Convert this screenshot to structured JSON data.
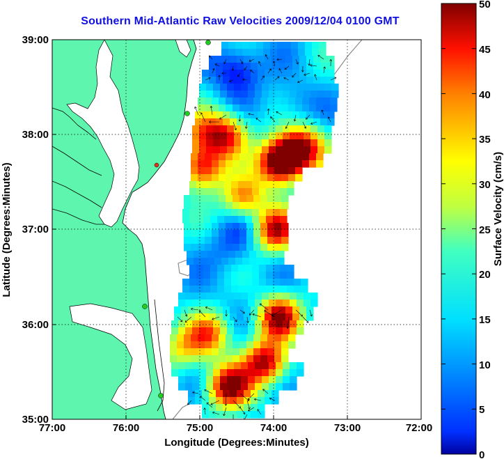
{
  "title": "Southern Mid-Atlantic Raw Velocities 2009/12/04 0100 GMT",
  "x_axis": {
    "label": "Longitude (Degrees:Minutes)",
    "ticks": [
      "77:00",
      "76:00",
      "75:00",
      "74:00",
      "73:00",
      "72:00"
    ]
  },
  "y_axis": {
    "label": "Latitude (Degrees:Minutes)",
    "ticks": [
      "39:00",
      "38:00",
      "37:00",
      "36:00",
      "35:00"
    ]
  },
  "colorbar": {
    "label": "Surface Velocity (cm/s)",
    "ticks": [
      "50",
      "45",
      "40",
      "35",
      "30",
      "25",
      "20",
      "15",
      "10",
      "5",
      "0"
    ],
    "min": 0,
    "max": 50
  },
  "colors": {
    "land": "#5ef5ae",
    "title": "#1010e0",
    "station": "#22cc22",
    "station_alert": "#e03020"
  },
  "map": {
    "lon_range": [
      -77,
      -72
    ],
    "lat_range": [
      35,
      39
    ],
    "grid": "dotted"
  }
}
